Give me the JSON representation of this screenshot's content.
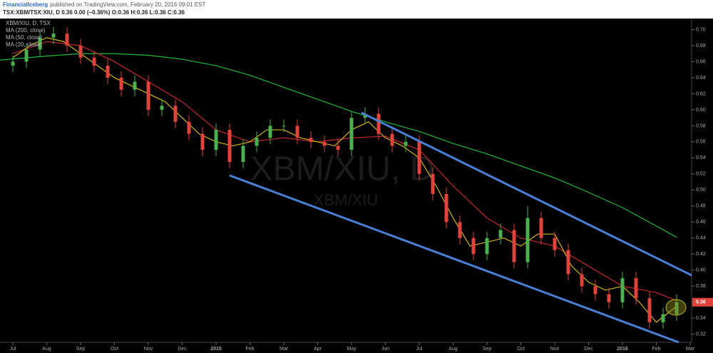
{
  "chart_data": {
    "type": "candlestick",
    "author": "FinancialIceberg",
    "published": "published on TradingView.com, February 20, 2016 09:01 EST",
    "quote_line": "TSX:XBM/TSX:XIU, D 0.36 0.00 (−0.36%) O:0.36 H:0.36 L:0.36 C:0.36",
    "title": "XBM/XIU, D, TSX",
    "watermark": "XBM/XIU, D",
    "watermark_sub": "XBM/XIU",
    "up_color": "#4caf50",
    "down_color": "#e0433b",
    "x": [
      0,
      0.4,
      0.8,
      1.2,
      1.6,
      2.0,
      2.4,
      2.8,
      3.2,
      3.6,
      4.0,
      4.4,
      4.8,
      5.2,
      5.6,
      6.0,
      6.4,
      6.8,
      7.2,
      7.6,
      8.0,
      8.4,
      8.8,
      9.2,
      9.6,
      10.0,
      10.4,
      10.8,
      11.2,
      11.6,
      12.0,
      12.4,
      12.8,
      13.2,
      13.6,
      14.0,
      14.4,
      14.8,
      15.2,
      15.6,
      16.0,
      16.4,
      16.8,
      17.2,
      17.6,
      18.0,
      18.4,
      18.8,
      19.2,
      19.6
    ],
    "open": [
      0.655,
      0.66,
      0.675,
      0.69,
      0.695,
      0.68,
      0.665,
      0.655,
      0.64,
      0.625,
      0.635,
      0.6,
      0.605,
      0.585,
      0.57,
      0.55,
      0.575,
      0.535,
      0.555,
      0.565,
      0.58,
      0.58,
      0.565,
      0.56,
      0.555,
      0.55,
      0.59,
      0.595,
      0.57,
      0.555,
      0.56,
      0.52,
      0.495,
      0.46,
      0.44,
      0.42,
      0.44,
      0.45,
      0.41,
      0.465,
      0.44,
      0.425,
      0.395,
      0.38,
      0.37,
      0.36,
      0.39,
      0.365,
      0.335,
      0.345
    ],
    "high": [
      0.668,
      0.683,
      0.698,
      0.703,
      0.703,
      0.688,
      0.673,
      0.663,
      0.648,
      0.643,
      0.643,
      0.613,
      0.613,
      0.593,
      0.578,
      0.583,
      0.583,
      0.563,
      0.573,
      0.588,
      0.588,
      0.588,
      0.573,
      0.568,
      0.563,
      0.598,
      0.603,
      0.603,
      0.578,
      0.568,
      0.568,
      0.528,
      0.503,
      0.468,
      0.448,
      0.448,
      0.458,
      0.458,
      0.48,
      0.473,
      0.448,
      0.433,
      0.403,
      0.388,
      0.378,
      0.398,
      0.398,
      0.373,
      0.353,
      0.37
    ],
    "low": [
      0.647,
      0.652,
      0.667,
      0.682,
      0.672,
      0.657,
      0.647,
      0.632,
      0.617,
      0.617,
      0.592,
      0.592,
      0.577,
      0.562,
      0.542,
      0.542,
      0.527,
      0.527,
      0.547,
      0.557,
      0.572,
      0.557,
      0.552,
      0.547,
      0.542,
      0.542,
      0.582,
      0.562,
      0.547,
      0.547,
      0.512,
      0.487,
      0.452,
      0.432,
      0.412,
      0.412,
      0.432,
      0.402,
      0.402,
      0.432,
      0.417,
      0.387,
      0.372,
      0.362,
      0.352,
      0.352,
      0.357,
      0.327,
      0.327,
      0.337
    ],
    "close": [
      0.66,
      0.675,
      0.69,
      0.695,
      0.68,
      0.665,
      0.655,
      0.64,
      0.625,
      0.635,
      0.6,
      0.605,
      0.585,
      0.57,
      0.55,
      0.575,
      0.535,
      0.555,
      0.565,
      0.58,
      0.58,
      0.565,
      0.56,
      0.555,
      0.55,
      0.59,
      0.595,
      0.57,
      0.555,
      0.56,
      0.52,
      0.495,
      0.46,
      0.44,
      0.42,
      0.44,
      0.45,
      0.41,
      0.465,
      0.44,
      0.425,
      0.395,
      0.38,
      0.37,
      0.36,
      0.39,
      0.365,
      0.335,
      0.345,
      0.36
    ],
    "series": [
      {
        "name": "MA (200, close)",
        "color": "#22b83a",
        "x": [
          -0.38,
          1,
          2,
          3,
          4,
          5,
          6,
          7,
          8,
          9,
          10,
          11,
          12,
          13,
          14,
          15,
          16,
          17,
          18,
          19,
          19.6
        ],
        "values": [
          0.662,
          0.667,
          0.67,
          0.67,
          0.668,
          0.663,
          0.655,
          0.643,
          0.628,
          0.613,
          0.598,
          0.585,
          0.573,
          0.558,
          0.545,
          0.53,
          0.515,
          0.497,
          0.478,
          0.455,
          0.441
        ]
      },
      {
        "name": "MA (50, close)",
        "color": "#c0282a",
        "x": [
          0,
          1,
          2,
          3,
          4,
          5,
          6,
          7,
          8,
          9,
          10,
          11,
          12,
          13,
          14,
          15,
          16,
          17,
          18,
          19,
          19.6
        ],
        "values": [
          0.67,
          0.685,
          0.68,
          0.66,
          0.635,
          0.61,
          0.575,
          0.56,
          0.565,
          0.56,
          0.565,
          0.567,
          0.55,
          0.505,
          0.465,
          0.44,
          0.43,
          0.405,
          0.38,
          0.372,
          0.362
        ]
      },
      {
        "name": "MA (20, close)",
        "color": "#d4b21c",
        "x": [
          0,
          0.5,
          1,
          1.5,
          2,
          2.5,
          3,
          3.5,
          4,
          4.5,
          5,
          5.5,
          6,
          6.5,
          7,
          7.5,
          8,
          8.5,
          9,
          9.5,
          10,
          10.5,
          11,
          11.5,
          12,
          12.5,
          13,
          13.5,
          14,
          14.5,
          15,
          15.5,
          16,
          16.5,
          17,
          17.5,
          18,
          18.5,
          19,
          19.6
        ],
        "values": [
          0.665,
          0.68,
          0.69,
          0.685,
          0.67,
          0.655,
          0.64,
          0.63,
          0.62,
          0.61,
          0.59,
          0.57,
          0.56,
          0.555,
          0.56,
          0.575,
          0.575,
          0.565,
          0.56,
          0.555,
          0.575,
          0.585,
          0.565,
          0.555,
          0.54,
          0.505,
          0.465,
          0.43,
          0.435,
          0.44,
          0.43,
          0.445,
          0.445,
          0.405,
          0.385,
          0.375,
          0.38,
          0.36,
          0.335,
          0.355
        ]
      }
    ],
    "last_price": {
      "value": 0.36,
      "label": "0.36"
    },
    "last_price_color": "#e0433b",
    "xlim": [
      -0.38,
      20.0
    ],
    "xticks": [
      {
        "value": 0,
        "label": "Jul"
      },
      {
        "value": 1,
        "label": "Aug"
      },
      {
        "value": 2,
        "label": "Sep"
      },
      {
        "value": 3,
        "label": "Oct"
      },
      {
        "value": 4,
        "label": "Nov"
      },
      {
        "value": 5,
        "label": "Dec"
      },
      {
        "value": 6,
        "label": "2015"
      },
      {
        "value": 7,
        "label": "Feb"
      },
      {
        "value": 8,
        "label": "Mar"
      },
      {
        "value": 9,
        "label": "Apr"
      },
      {
        "value": 10,
        "label": "May"
      },
      {
        "value": 11,
        "label": "Jun"
      },
      {
        "value": 12,
        "label": "Jul"
      },
      {
        "value": 13,
        "label": "Aug"
      },
      {
        "value": 14,
        "label": "Sep"
      },
      {
        "value": 15,
        "label": "Oct"
      },
      {
        "value": 16,
        "label": "Nov"
      },
      {
        "value": 17,
        "label": "Dec"
      },
      {
        "value": 18,
        "label": "2016"
      },
      {
        "value": 19,
        "label": "Feb"
      },
      {
        "value": 20,
        "label": "Mar"
      }
    ],
    "ylim": [
      0.31,
      0.712
    ],
    "yticks": [
      0.32,
      0.34,
      0.36,
      0.38,
      {
        "value": 0.4,
        "label": "0.40"
      },
      0.42,
      0.44,
      0.46,
      0.48,
      {
        "value": 0.5,
        "label": "0.50"
      },
      0.52,
      0.54,
      0.56,
      0.58,
      {
        "value": 0.6,
        "label": "0.60"
      },
      0.62,
      0.64,
      0.66,
      0.68,
      {
        "value": 0.7,
        "label": "0.70"
      }
    ],
    "grid": false
  }
}
